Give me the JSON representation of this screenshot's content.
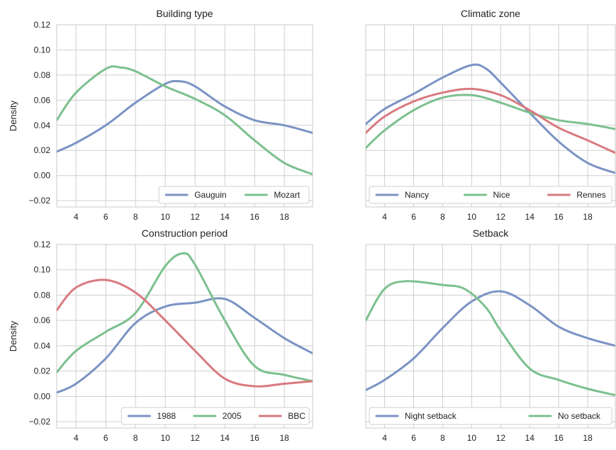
{
  "chart_data": [
    {
      "type": "line",
      "title": "Building type",
      "xlabel": "",
      "ylabel": "Density",
      "xlim": [
        2.7,
        19.9
      ],
      "ylim": [
        -0.025,
        0.12
      ],
      "xticks": [
        4,
        6,
        8,
        10,
        12,
        14,
        16,
        18
      ],
      "yticks": [
        -0.02,
        0.0,
        0.02,
        0.04,
        0.06,
        0.08,
        0.1,
        0.12
      ],
      "ytick_labels": [
        "−0.02",
        "0.00",
        "0.02",
        "0.04",
        "0.06",
        "0.08",
        "0.10",
        "0.12"
      ],
      "grid": true,
      "legend": "bottom-right",
      "legend_columns": 2,
      "series": [
        {
          "name": "Gauguin",
          "color": "#7b93c4",
          "x": [
            2.7,
            4,
            6,
            8,
            10,
            11,
            12,
            14,
            16,
            18,
            19.9
          ],
          "y": [
            0.019,
            0.026,
            0.04,
            0.058,
            0.073,
            0.075,
            0.071,
            0.055,
            0.044,
            0.04,
            0.034
          ]
        },
        {
          "name": "Mozart",
          "color": "#7cc08e",
          "x": [
            2.7,
            4,
            6,
            7,
            8,
            10,
            12,
            14,
            16,
            18,
            19.9
          ],
          "y": [
            0.044,
            0.066,
            0.085,
            0.086,
            0.083,
            0.071,
            0.061,
            0.048,
            0.028,
            0.01,
            0.001
          ]
        }
      ]
    },
    {
      "type": "line",
      "title": "Climatic zone",
      "xlabel": "",
      "ylabel": "",
      "xlim": [
        2.7,
        19.9
      ],
      "ylim": [
        -0.025,
        0.12
      ],
      "xticks": [
        4,
        6,
        8,
        10,
        12,
        14,
        16,
        18
      ],
      "yticks": [
        -0.02,
        0.0,
        0.02,
        0.04,
        0.06,
        0.08,
        0.1,
        0.12
      ],
      "grid": true,
      "legend": "bottom",
      "legend_columns": 3,
      "series": [
        {
          "name": "Nancy",
          "color": "#7b93c4",
          "x": [
            2.7,
            4,
            6,
            8,
            10,
            11,
            12,
            14,
            16,
            18,
            19.9
          ],
          "y": [
            0.041,
            0.053,
            0.065,
            0.078,
            0.088,
            0.085,
            0.074,
            0.05,
            0.027,
            0.01,
            0.002
          ]
        },
        {
          "name": "Nice",
          "color": "#7cc08e",
          "x": [
            2.7,
            4,
            6,
            8,
            10,
            12,
            14,
            16,
            18,
            19.9
          ],
          "y": [
            0.022,
            0.036,
            0.052,
            0.062,
            0.064,
            0.058,
            0.05,
            0.044,
            0.041,
            0.037
          ]
        },
        {
          "name": "Rennes",
          "color": "#d97a7e",
          "x": [
            2.7,
            4,
            6,
            8,
            10,
            12,
            14,
            16,
            18,
            19.9
          ],
          "y": [
            0.034,
            0.047,
            0.059,
            0.066,
            0.069,
            0.064,
            0.052,
            0.038,
            0.028,
            0.018
          ]
        }
      ]
    },
    {
      "type": "line",
      "title": "Construction period",
      "xlabel": "",
      "ylabel": "Density",
      "xlim": [
        2.7,
        19.9
      ],
      "ylim": [
        -0.025,
        0.12
      ],
      "xticks": [
        4,
        6,
        8,
        10,
        12,
        14,
        16,
        18
      ],
      "yticks": [
        -0.02,
        0.0,
        0.02,
        0.04,
        0.06,
        0.08,
        0.1,
        0.12
      ],
      "ytick_labels": [
        "−0.02",
        "0.00",
        "0.02",
        "0.04",
        "0.06",
        "0.08",
        "0.10",
        "0.12"
      ],
      "grid": true,
      "legend": "bottom-right",
      "legend_columns": 3,
      "series": [
        {
          "name": "1988",
          "color": "#7b93c4",
          "x": [
            2.7,
            4,
            6,
            8,
            10,
            12,
            14,
            16,
            18,
            19.9
          ],
          "y": [
            0.003,
            0.01,
            0.03,
            0.058,
            0.071,
            0.074,
            0.077,
            0.062,
            0.046,
            0.034
          ]
        },
        {
          "name": "2005",
          "color": "#7cc08e",
          "x": [
            2.7,
            4,
            6,
            8,
            10,
            11.2,
            12,
            14,
            16,
            18,
            19.9
          ],
          "y": [
            0.019,
            0.036,
            0.051,
            0.066,
            0.103,
            0.113,
            0.104,
            0.06,
            0.024,
            0.017,
            0.012
          ]
        },
        {
          "name": "BBC",
          "color": "#d97a7e",
          "x": [
            2.7,
            4,
            6,
            8,
            10,
            12,
            14,
            16,
            18,
            19.9
          ],
          "y": [
            0.068,
            0.086,
            0.092,
            0.082,
            0.06,
            0.036,
            0.014,
            0.008,
            0.01,
            0.012
          ]
        }
      ]
    },
    {
      "type": "line",
      "title": "Setback",
      "xlabel": "",
      "ylabel": "",
      "xlim": [
        2.7,
        19.9
      ],
      "ylim": [
        -0.025,
        0.12
      ],
      "xticks": [
        4,
        6,
        8,
        10,
        12,
        14,
        16,
        18
      ],
      "yticks": [
        -0.02,
        0.0,
        0.02,
        0.04,
        0.06,
        0.08,
        0.1,
        0.12
      ],
      "grid": true,
      "legend": "bottom",
      "legend_columns": 2,
      "series": [
        {
          "name": "Night setback",
          "color": "#7b93c4",
          "x": [
            2.7,
            4,
            6,
            8,
            10,
            12,
            14,
            16,
            18,
            19.9
          ],
          "y": [
            0.005,
            0.013,
            0.03,
            0.054,
            0.075,
            0.083,
            0.072,
            0.055,
            0.046,
            0.04
          ]
        },
        {
          "name": "No setback",
          "color": "#7cc08e",
          "x": [
            2.7,
            4,
            5.5,
            8,
            9.5,
            11,
            12,
            14,
            16,
            18,
            19.9
          ],
          "y": [
            0.06,
            0.085,
            0.091,
            0.088,
            0.085,
            0.07,
            0.052,
            0.022,
            0.013,
            0.006,
            0.001
          ]
        }
      ]
    }
  ]
}
